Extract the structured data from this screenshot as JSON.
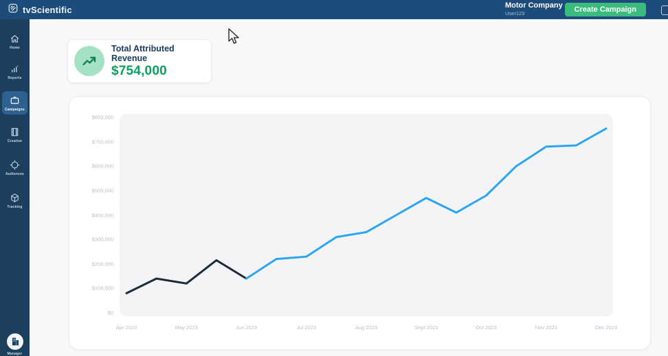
{
  "topbar": {
    "brand": "tvScientific",
    "account_name": "Motor Company",
    "account_user": "User123",
    "create_campaign_label": "Create Campaign"
  },
  "icons": {
    "chevron_down": "⌄"
  },
  "sidebar": {
    "items": [
      {
        "label": "Home"
      },
      {
        "label": "Reports"
      },
      {
        "label": "Campaigns",
        "active": true
      },
      {
        "label": "Creative"
      },
      {
        "label": "Audiences"
      },
      {
        "label": "Tracking"
      }
    ],
    "bottom": {
      "label": "Manager"
    }
  },
  "summary_card": {
    "title": "Total Attributed Revenue",
    "value": "$754,000"
  },
  "colors": {
    "topbar_bg": "#1e4c7a",
    "sidebar_bg": "#1d3f5e",
    "active_item_bg": "#2e6190",
    "accent_green": "#3bbc7f",
    "revenue_green": "#0aa05e",
    "icon_circle_mint": "#a5e1c4",
    "line_dark": "#1c2b3a",
    "line_blue": "#2aa5f1",
    "plot_bg": "#f4f4f6",
    "axis_text": "#b8bec6"
  },
  "chart_data": {
    "type": "line",
    "title": "",
    "x_labels": [
      "Apr 2023",
      "May 2023",
      "Jun 2023",
      "Jul 2023",
      "Aug 2023",
      "Sept 2023",
      "Oct 2023",
      "Nov 2023",
      "Dec 2023"
    ],
    "y_ticks": [
      "$800,000",
      "$700,000",
      "$600,000",
      "$500,000",
      "$400,000",
      "$300,000",
      "$200,000",
      "$100,000",
      "$0"
    ],
    "ylim": [
      0,
      800000
    ],
    "values": [
      80000,
      140000,
      120000,
      215000,
      140000,
      220000,
      230000,
      310000,
      330000,
      400000,
      470000,
      410000,
      480000,
      600000,
      680000,
      685000,
      754000
    ],
    "points_per_label": 2,
    "segment_split_index": 4,
    "segment_colors": [
      "#1c2b3a",
      "#2aa5f1"
    ],
    "grid": false,
    "legend": "none"
  }
}
